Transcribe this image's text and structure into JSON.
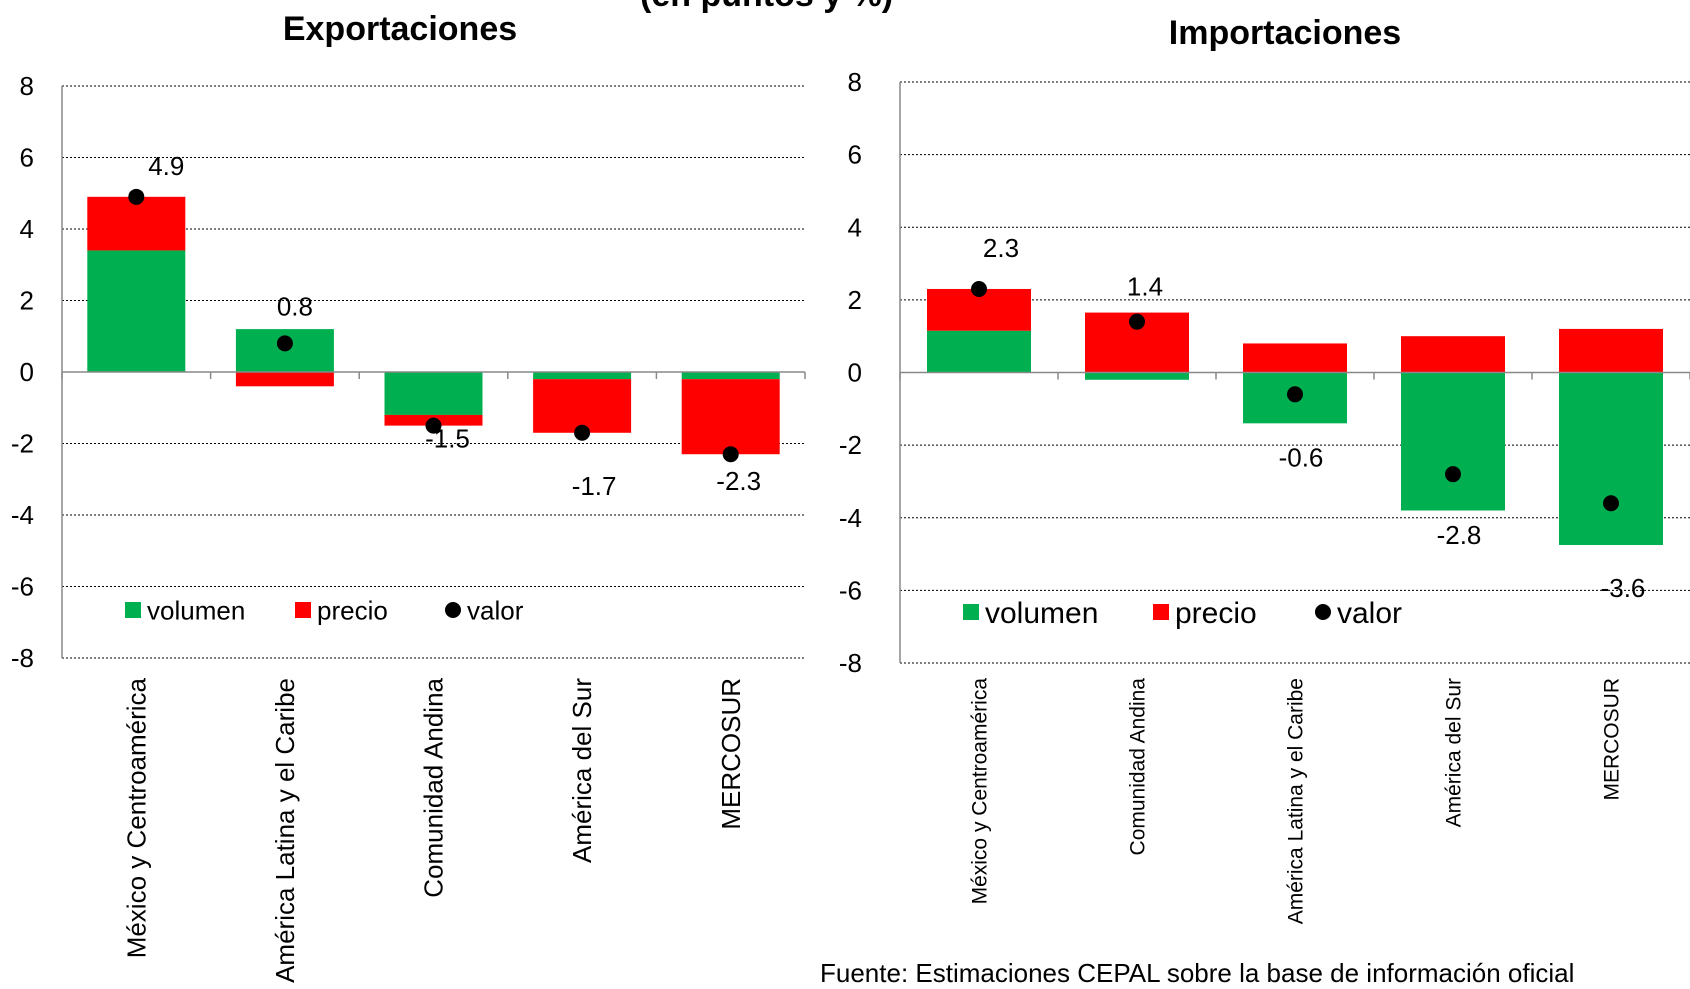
{
  "page_title_fragment": "(en puntos y %)",
  "source_note": "Fuente: Estimaciones CEPAL sobre la base de información oficial",
  "colors": {
    "volumen": "#00B050",
    "precio": "#FF0000",
    "valor": "#000000"
  },
  "chart_data": [
    {
      "type": "bar",
      "stacked": true,
      "title": "Exportaciones",
      "ylim": [
        -8,
        8
      ],
      "yticks": [
        -8,
        -6,
        -4,
        -2,
        0,
        2,
        4,
        6,
        8
      ],
      "grid": true,
      "legend_position": "bottom-left",
      "categories": [
        "México y Centroamérica",
        "América Latina y el Caribe",
        "Comunidad Andina",
        "América del Sur",
        "MERCOSUR"
      ],
      "series": [
        {
          "name": "volumen",
          "values": [
            3.4,
            1.2,
            -1.2,
            -0.2,
            -0.2
          ]
        },
        {
          "name": "precio",
          "values": [
            1.5,
            -0.4,
            -0.3,
            -1.5,
            -2.1
          ]
        }
      ],
      "valor": {
        "name": "valor",
        "values": [
          4.9,
          0.8,
          -1.5,
          -1.7,
          -2.3
        ],
        "labels": [
          "4.9",
          "0.8",
          "-1.5",
          "-1.7",
          "-2.3"
        ]
      }
    },
    {
      "type": "bar",
      "stacked": true,
      "title": "Importaciones",
      "ylim": [
        -8,
        8
      ],
      "yticks": [
        -8,
        -6,
        -4,
        -2,
        0,
        2,
        4,
        6,
        8
      ],
      "grid": true,
      "legend_position": "bottom-left",
      "categories": [
        "México y Centroamérica",
        "Comunidad Andina",
        "América Latina y el Caribe",
        "América del Sur",
        "MERCOSUR"
      ],
      "series": [
        {
          "name": "volumen",
          "values": [
            1.15,
            -0.2,
            -1.4,
            -3.8,
            -4.75
          ]
        },
        {
          "name": "precio",
          "values": [
            1.15,
            1.65,
            0.8,
            1.0,
            1.2
          ]
        }
      ],
      "valor": {
        "name": "valor",
        "values": [
          2.3,
          1.4,
          -0.6,
          -2.8,
          -3.6
        ],
        "labels": [
          "2.3",
          "1.4",
          "-0.6",
          "-2.8",
          "-3.6"
        ]
      }
    }
  ]
}
